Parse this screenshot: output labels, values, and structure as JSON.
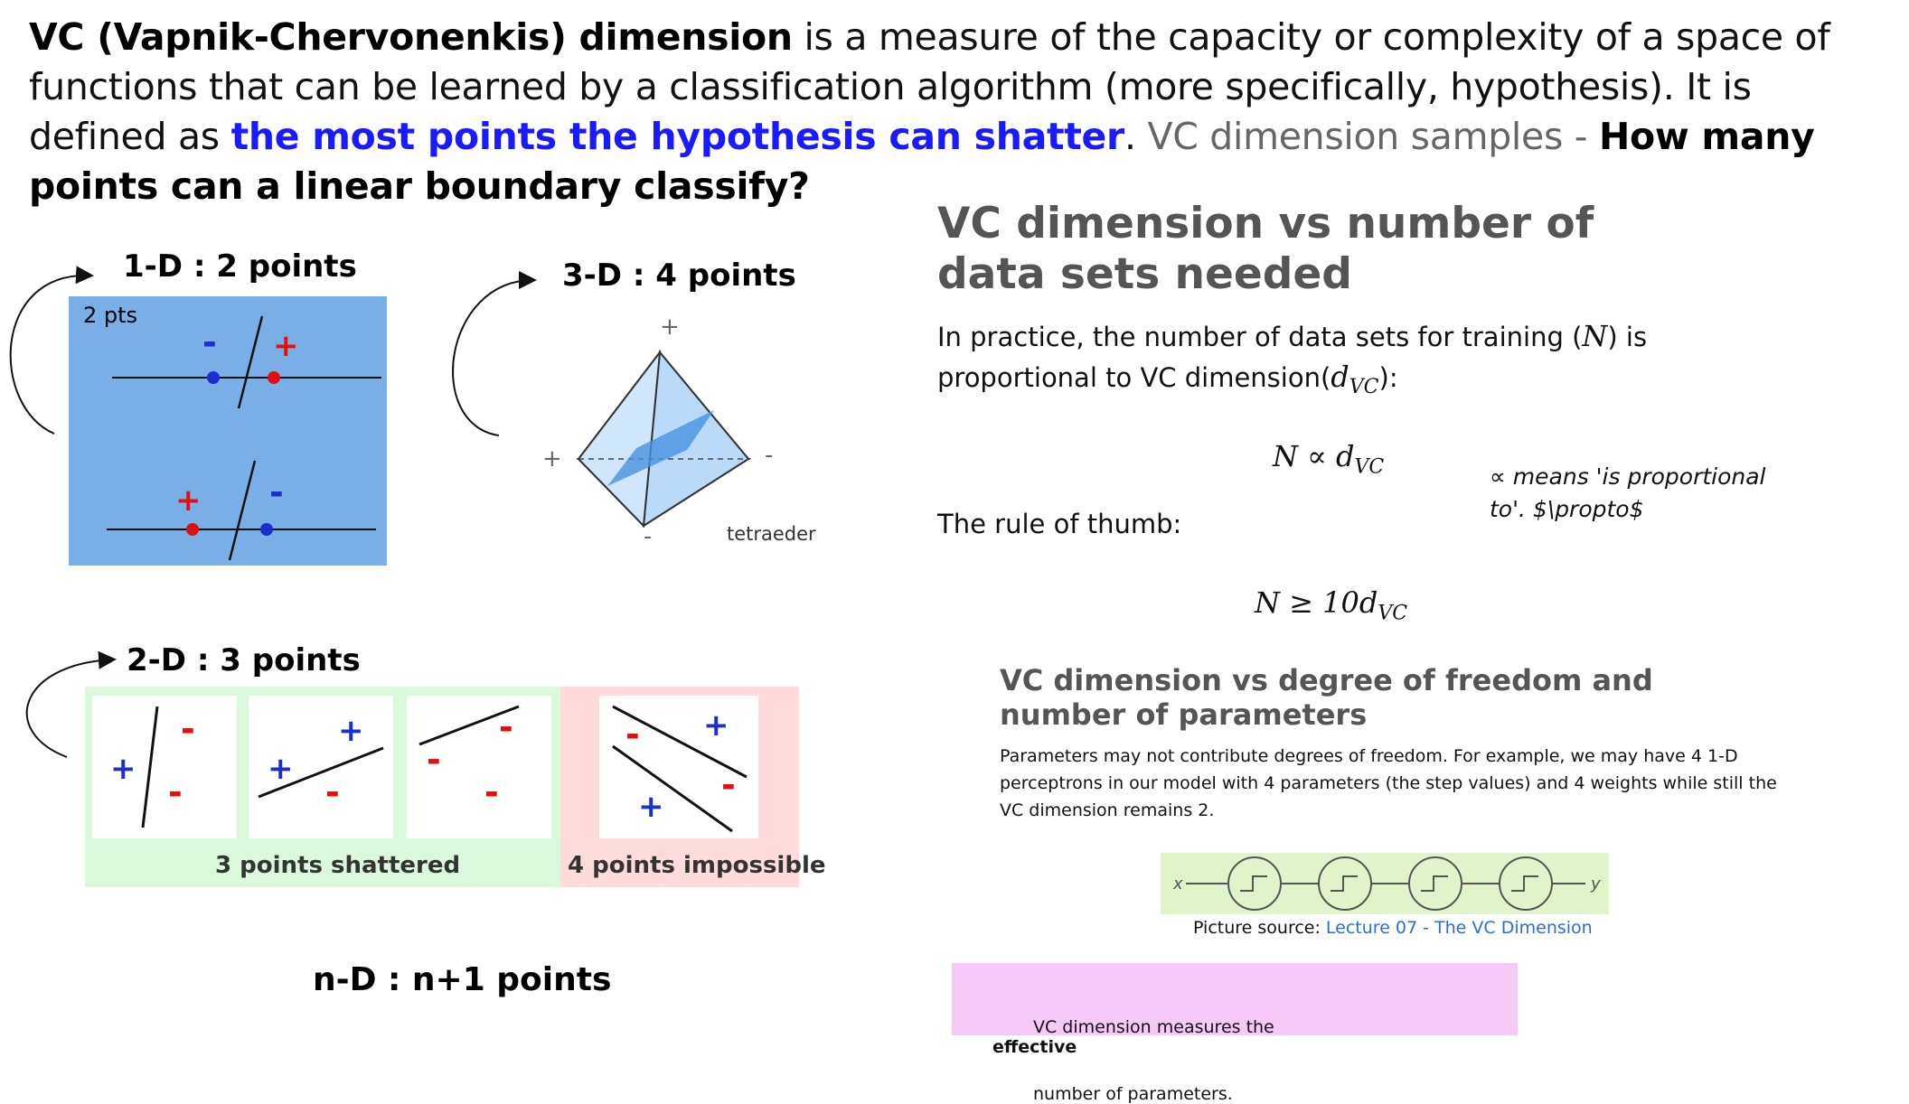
{
  "intro": {
    "term": "VC (Vapnik-Chervonenkis) dimension",
    "part1": " is a measure of the capacity or complexity of a space of functions that can be learned by a classification algorithm (more specifically, hypothesis). It is defined as ",
    "highlight": "the most points the hypothesis can shatter",
    "part2": ". ",
    "samples_label": "VC dimension samples - ",
    "question": "How many points can a linear boundary classify?"
  },
  "left": {
    "oned_caption": "1-D : 2 points",
    "oned_box_label": "2 pts",
    "threed_caption": "3-D : 4 points",
    "tetra_label": "tetraeder",
    "twod_caption": "2-D : 3 points",
    "shattered_label": "3 points shattered",
    "impossible_label": "4 points impossible",
    "nd_caption": "n-D : n+1 points",
    "plus": "+",
    "minus": "-"
  },
  "right": {
    "title": "VC dimension vs number of data sets needed",
    "practice_text_a": "In practice, the number of data sets for training (",
    "practice_N": "N",
    "practice_text_b": ") is",
    "practice_text_c": "proportional to VC dimension(",
    "practice_d": "d",
    "practice_sub": "VC",
    "practice_text_d": "):",
    "formula1": "N ∝ d",
    "formula1_sub": "VC",
    "note": "∝ means 'is proportional to'. $\\propto$",
    "rule_label": "The rule of thumb:",
    "formula2": "N ≥ 10d",
    "formula2_sub": "VC",
    "subtitle": "VC dimension vs degree of freedom and number of parameters",
    "params_text": "Parameters may not contribute degrees of freedom. For example, we may have 4 1-D perceptrons in our model with 4 parameters (the step values) and 4 weights while still the VC dimension remains 2.",
    "diagram_x": "x",
    "diagram_y": "y",
    "source_label": "Picture source: ",
    "source_link": "Lecture 07 - The VC Dimension",
    "callout_a": "VC dimension measures the ",
    "callout_b": "effective",
    "callout_c": " number of parameters."
  },
  "colors": {
    "blue_box": "#7aaee6",
    "green_box": "#dcf8dc",
    "red_box": "#ffdcdc",
    "highlight_blue": "#1a1aff",
    "plus_red": "#e01010",
    "point_blue": "#1a2fcc",
    "diagram_bg": "#e1f3c8",
    "callout_bg": "#f7c9f7"
  }
}
